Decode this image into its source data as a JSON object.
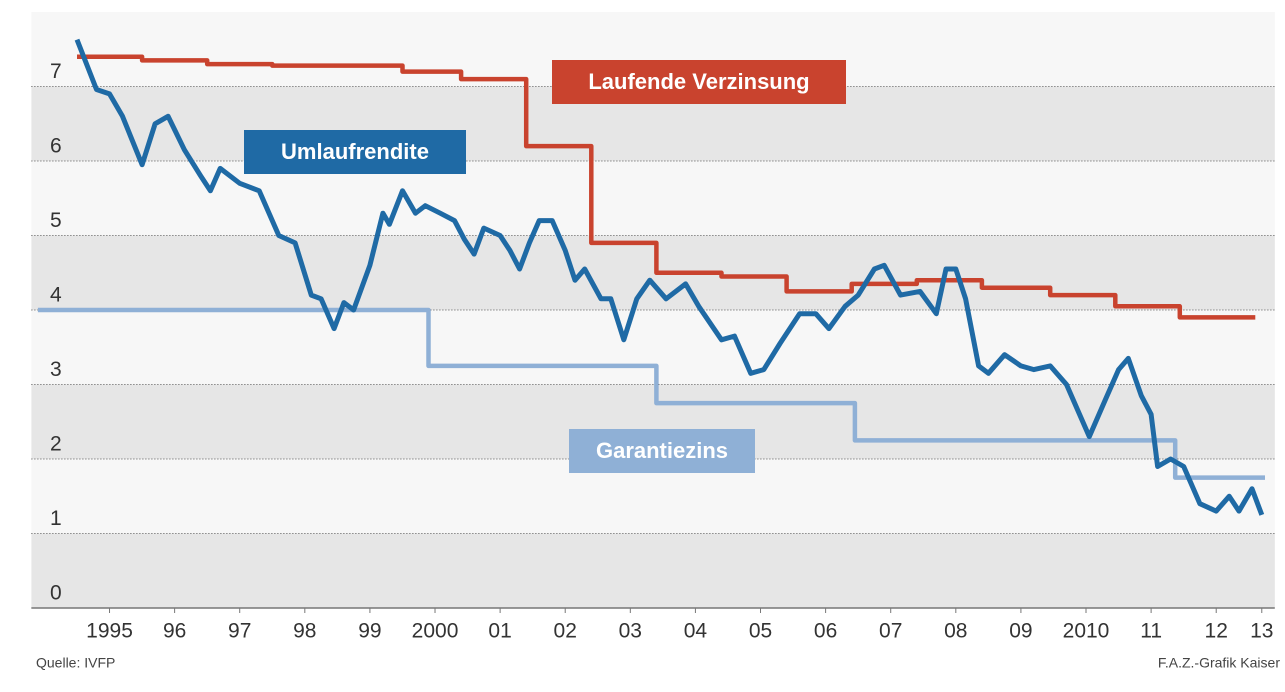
{
  "chart_data": {
    "type": "line",
    "source": "Quelle: IVFP",
    "credit": "F.A.Z.-Grafik Kaiser",
    "xlim": [
      1994.3,
      2013.4
    ],
    "ylim": [
      0,
      8
    ],
    "yticks": [
      0,
      1,
      2,
      3,
      4,
      5,
      6,
      7
    ],
    "xticks": [
      {
        "value": 1995.5,
        "label": "1995"
      },
      {
        "value": 1996.5,
        "label": "96"
      },
      {
        "value": 1997.5,
        "label": "97"
      },
      {
        "value": 1998.5,
        "label": "98"
      },
      {
        "value": 1999.5,
        "label": "99"
      },
      {
        "value": 2000.5,
        "label": "2000"
      },
      {
        "value": 2001.5,
        "label": "01"
      },
      {
        "value": 2002.5,
        "label": "02"
      },
      {
        "value": 2003.5,
        "label": "03"
      },
      {
        "value": 2004.5,
        "label": "04"
      },
      {
        "value": 2005.5,
        "label": "05"
      },
      {
        "value": 2006.5,
        "label": "06"
      },
      {
        "value": 2007.5,
        "label": "07"
      },
      {
        "value": 2008.5,
        "label": "08"
      },
      {
        "value": 2009.5,
        "label": "09"
      },
      {
        "value": 2010.5,
        "label": "2010"
      },
      {
        "value": 2011.5,
        "label": "11"
      },
      {
        "value": 2012.5,
        "label": "12"
      },
      {
        "value": 2013.2,
        "label": "13"
      }
    ],
    "grid": true,
    "series": [
      {
        "name": "Laufende Verzinsung",
        "color": "#c9432e",
        "x": [
          1995.0,
          1996.0,
          1996.0,
          1997.0,
          1997.0,
          1998.0,
          1998.0,
          2000.0,
          2000.0,
          2000.9,
          2000.9,
          2001.9,
          2001.9,
          2002.9,
          2002.9,
          2003.9,
          2003.9,
          2004.9,
          2004.9,
          2005.9,
          2005.9,
          2006.9,
          2006.9,
          2007.9,
          2007.9,
          2008.9,
          2008.9,
          2009.95,
          2009.95,
          2010.95,
          2010.95,
          2011.94,
          2011.94,
          2013.1
        ],
        "values": [
          7.4,
          7.4,
          7.35,
          7.35,
          7.3,
          7.3,
          7.28,
          7.28,
          7.2,
          7.2,
          7.1,
          7.1,
          6.2,
          6.2,
          4.9,
          4.9,
          4.5,
          4.5,
          4.45,
          4.45,
          4.25,
          4.25,
          4.35,
          4.35,
          4.4,
          4.4,
          4.3,
          4.3,
          4.2,
          4.2,
          4.05,
          4.05,
          3.9,
          3.9
        ]
      },
      {
        "name": "Umlaufrendite",
        "color": "#1f6aa5",
        "x": [
          1995.0,
          1995.3,
          1995.5,
          1995.7,
          1996.0,
          1996.2,
          1996.4,
          1996.65,
          1996.9,
          1997.05,
          1997.2,
          1997.5,
          1997.8,
          1998.1,
          1998.35,
          1998.6,
          1998.75,
          1998.95,
          1999.1,
          1999.25,
          1999.5,
          1999.7,
          1999.8,
          2000.0,
          2000.2,
          2000.35,
          2000.58,
          2000.8,
          2000.95,
          2001.1,
          2001.25,
          2001.5,
          2001.65,
          2001.8,
          2001.95,
          2002.1,
          2002.3,
          2002.5,
          2002.65,
          2002.8,
          2003.05,
          2003.2,
          2003.4,
          2003.6,
          2003.8,
          2004.05,
          2004.35,
          2004.55,
          2004.9,
          2005.1,
          2005.35,
          2005.55,
          2005.8,
          2006.1,
          2006.35,
          2006.55,
          2006.8,
          2007.0,
          2007.25,
          2007.4,
          2007.65,
          2007.95,
          2008.2,
          2008.35,
          2008.5,
          2008.65,
          2008.85,
          2009.0,
          2009.25,
          2009.5,
          2009.7,
          2009.95,
          2010.2,
          2010.4,
          2010.55,
          2010.8,
          2011.0,
          2011.15,
          2011.35,
          2011.5,
          2011.6,
          2011.8,
          2012.0,
          2012.25,
          2012.5,
          2012.7,
          2012.85,
          2013.05,
          2013.2
        ],
        "values": [
          7.63,
          6.96,
          6.9,
          6.6,
          5.95,
          6.5,
          6.6,
          6.15,
          5.8,
          5.6,
          5.9,
          5.7,
          5.6,
          5.0,
          4.9,
          4.2,
          4.15,
          3.75,
          4.1,
          4.0,
          4.6,
          5.3,
          5.15,
          5.6,
          5.3,
          5.4,
          5.3,
          5.2,
          4.95,
          4.75,
          5.1,
          5.0,
          4.8,
          4.55,
          4.9,
          5.2,
          5.2,
          4.8,
          4.4,
          4.55,
          4.15,
          4.15,
          3.6,
          4.15,
          4.4,
          4.15,
          4.35,
          4.05,
          3.6,
          3.65,
          3.15,
          3.2,
          3.55,
          3.95,
          3.95,
          3.75,
          4.05,
          4.2,
          4.55,
          4.6,
          4.2,
          4.25,
          3.95,
          4.55,
          4.55,
          4.15,
          3.25,
          3.15,
          3.4,
          3.25,
          3.2,
          3.25,
          3.0,
          2.6,
          2.3,
          2.8,
          3.2,
          3.35,
          2.85,
          2.6,
          1.9,
          2.0,
          1.9,
          1.4,
          1.3,
          1.5,
          1.3,
          1.6,
          1.25
        ]
      },
      {
        "name": "Garantiezins",
        "color": "#8fb0d6",
        "x": [
          1994.4,
          2000.4,
          2000.4,
          2003.9,
          2003.9,
          2006.95,
          2006.95,
          2011.87,
          2011.87,
          2013.25
        ],
        "values": [
          4.0,
          4.0,
          3.25,
          3.25,
          2.75,
          2.75,
          2.25,
          2.25,
          1.75,
          1.75
        ]
      }
    ]
  }
}
